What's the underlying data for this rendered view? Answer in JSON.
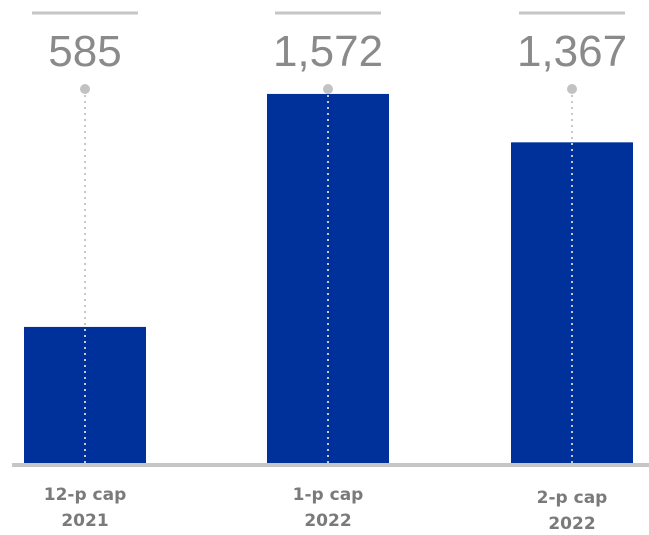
{
  "chart_data": {
    "type": "bar",
    "categories": [
      [
        "12-p cap",
        "2021"
      ],
      [
        "1-p cap",
        "2022"
      ],
      [
        "2-p cap",
        "2022"
      ]
    ],
    "values": [
      585,
      1572,
      1367
    ],
    "value_labels": [
      "585",
      "1,572",
      "1,367"
    ],
    "bar_color": "#00309a",
    "ylim": [
      0,
      1970
    ],
    "grid": false,
    "legend": "none"
  }
}
